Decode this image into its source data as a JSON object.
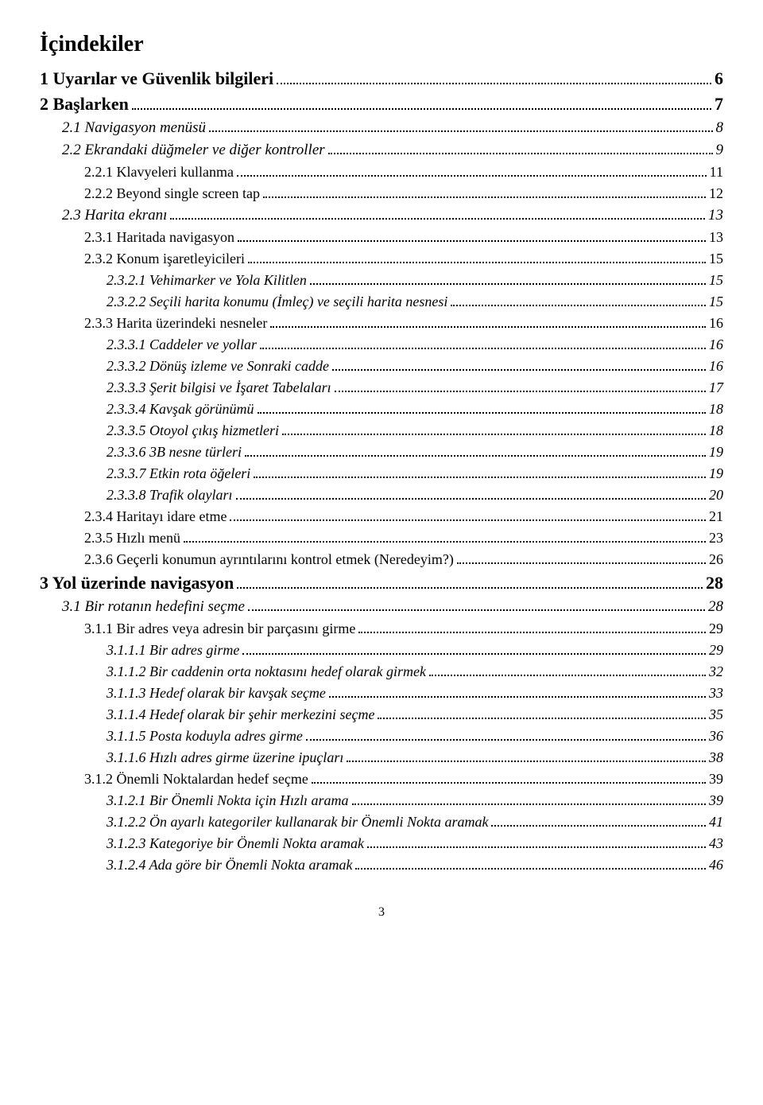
{
  "title": "İçindekiler",
  "footer_page_number": "3",
  "entries": [
    {
      "level": 0,
      "label": "1 Uyarılar ve Güvenlik bilgileri",
      "page": "6"
    },
    {
      "level": 0,
      "label": "2 Başlarken",
      "page": "7"
    },
    {
      "level": 1,
      "label": "2.1 Navigasyon menüsü",
      "page": "8"
    },
    {
      "level": 1,
      "label": "2.2 Ekrandaki düğmeler ve diğer kontroller",
      "page": "9"
    },
    {
      "level": 2,
      "label": "2.2.1 Klavyeleri kullanma",
      "page": "11"
    },
    {
      "level": 2,
      "label": "2.2.2 Beyond single screen tap",
      "page": "12"
    },
    {
      "level": 1,
      "label": "2.3 Harita ekranı",
      "page": "13"
    },
    {
      "level": 2,
      "label": "2.3.1 Haritada navigasyon",
      "page": "13"
    },
    {
      "level": 2,
      "label": "2.3.2 Konum işaretleyicileri",
      "page": "15"
    },
    {
      "level": 3,
      "label": "2.3.2.1 Vehimarker ve Yola Kilitlen",
      "page": "15"
    },
    {
      "level": 3,
      "label": "2.3.2.2 Seçili harita konumu (İmleç) ve seçili harita nesnesi",
      "page": "15"
    },
    {
      "level": 2,
      "label": "2.3.3 Harita üzerindeki nesneler",
      "page": "16"
    },
    {
      "level": 3,
      "label": "2.3.3.1 Caddeler ve yollar",
      "page": "16"
    },
    {
      "level": 3,
      "label": "2.3.3.2 Dönüş izleme ve Sonraki cadde",
      "page": "16"
    },
    {
      "level": 3,
      "label": "2.3.3.3 Şerit bilgisi ve İşaret Tabelaları",
      "page": "17"
    },
    {
      "level": 3,
      "label": "2.3.3.4 Kavşak görünümü",
      "page": "18"
    },
    {
      "level": 3,
      "label": "2.3.3.5 Otoyol çıkış hizmetleri",
      "page": "18"
    },
    {
      "level": 3,
      "label": "2.3.3.6 3B nesne türleri",
      "page": "19"
    },
    {
      "level": 3,
      "label": "2.3.3.7 Etkin rota öğeleri",
      "page": "19"
    },
    {
      "level": 3,
      "label": "2.3.3.8 Trafik olayları",
      "page": "20"
    },
    {
      "level": 2,
      "label": "2.3.4 Haritayı idare etme",
      "page": "21"
    },
    {
      "level": 2,
      "label": "2.3.5 Hızlı menü",
      "page": "23"
    },
    {
      "level": 2,
      "label": "2.3.6 Geçerli konumun ayrıntılarını kontrol etmek (Neredeyim?)",
      "page": "26"
    },
    {
      "level": 0,
      "label": "3 Yol üzerinde navigasyon",
      "page": "28"
    },
    {
      "level": 1,
      "label": "3.1 Bir rotanın hedefini seçme",
      "page": "28"
    },
    {
      "level": 2,
      "label": "3.1.1 Bir adres veya adresin bir parçasını girme",
      "page": "29"
    },
    {
      "level": 3,
      "label": "3.1.1.1 Bir adres girme",
      "page": "29"
    },
    {
      "level": 3,
      "label": "3.1.1.2 Bir caddenin orta noktasını hedef olarak girmek",
      "page": "32"
    },
    {
      "level": 3,
      "label": "3.1.1.3 Hedef olarak bir kavşak seçme",
      "page": "33"
    },
    {
      "level": 3,
      "label": "3.1.1.4 Hedef olarak bir şehir merkezini seçme",
      "page": "35"
    },
    {
      "level": 3,
      "label": "3.1.1.5 Posta koduyla adres girme",
      "page": "36"
    },
    {
      "level": 3,
      "label": "3.1.1.6 Hızlı adres girme üzerine ipuçları",
      "page": "38"
    },
    {
      "level": 2,
      "label": "3.1.2 Önemli Noktalardan hedef seçme",
      "page": "39"
    },
    {
      "level": 3,
      "label": "3.1.2.1 Bir Önemli Nokta için Hızlı arama",
      "page": "39"
    },
    {
      "level": 3,
      "label": "3.1.2.2 Ön ayarlı kategoriler kullanarak bir Önemli Nokta aramak",
      "page": "41"
    },
    {
      "level": 3,
      "label": "3.1.2.3 Kategoriye bir Önemli Nokta aramak",
      "page": "43"
    },
    {
      "level": 3,
      "label": "3.1.2.4 Ada göre bir Önemli Nokta aramak",
      "page": "46"
    }
  ]
}
